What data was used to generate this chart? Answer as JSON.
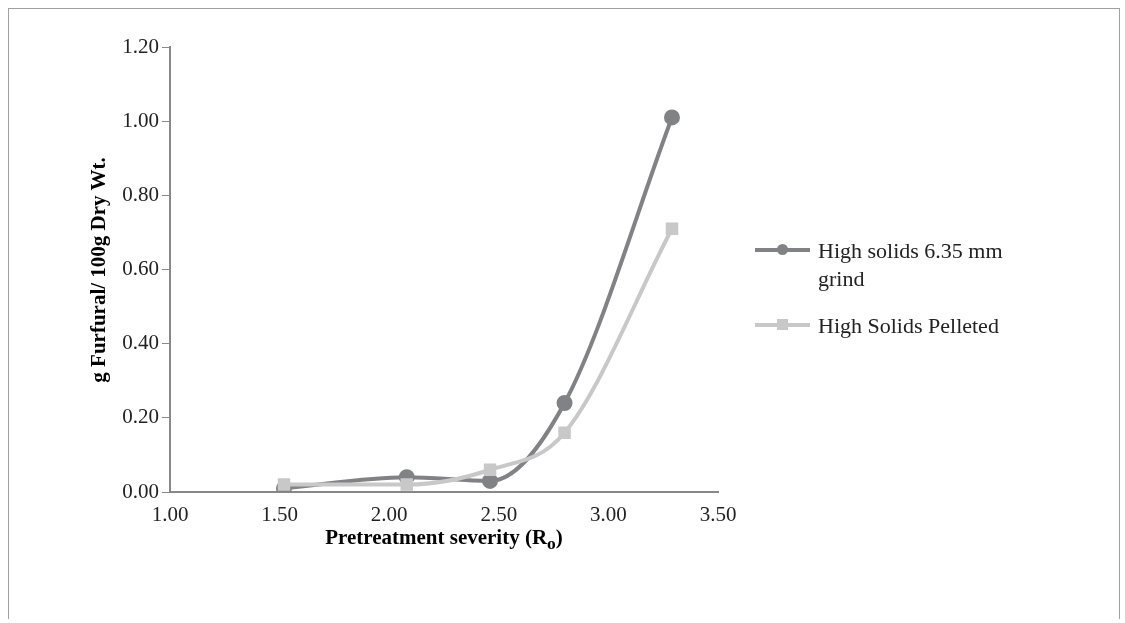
{
  "chart_data": {
    "type": "line",
    "xlabel": "Pretreatment severity (R$_{o}$)",
    "ylabel": "g Furfural/ 100g Dry Wt.",
    "xlim": [
      1.0,
      3.5
    ],
    "xticks": [
      {
        "value": 1,
        "label": "1.00"
      },
      {
        "value": 1.5,
        "label": "1.50"
      },
      {
        "value": 2,
        "label": "2.00"
      },
      {
        "value": 2.5,
        "label": "2.50"
      },
      {
        "value": 3,
        "label": "3.00"
      },
      {
        "value": 3.5,
        "label": "3.50"
      }
    ],
    "ylim": [
      0,
      1.2
    ],
    "yticks": [
      {
        "value": 0,
        "label": "0.00"
      },
      {
        "value": 0.2,
        "label": "0.20"
      },
      {
        "value": 0.4,
        "label": "0.40"
      },
      {
        "value": 0.6,
        "label": "0.60"
      },
      {
        "value": 0.8,
        "label": "0.80"
      },
      {
        "value": 1,
        "label": "1.00"
      },
      {
        "value": 1.2,
        "label": "1.20"
      }
    ],
    "x": [
      1.52,
      2.08,
      2.46,
      2.8,
      3.29
    ],
    "series": [
      {
        "name": "High solids 6.35 mm grind",
        "color": "#808285",
        "marker": "circle",
        "values": [
          0.01,
          0.04,
          0.03,
          0.24,
          1.01
        ]
      },
      {
        "name": "High Solids Pelleted",
        "color": "#c8c8c8",
        "marker": "square",
        "values": [
          0.02,
          0.02,
          0.06,
          0.16,
          0.71
        ]
      }
    ],
    "grid": false,
    "legend": "right"
  }
}
